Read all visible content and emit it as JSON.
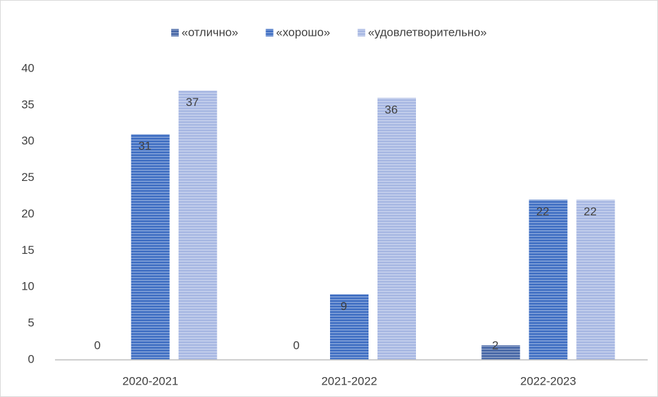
{
  "chart_data": {
    "type": "bar",
    "categories": [
      "2020-2021",
      "2021-2022",
      "2022-2023"
    ],
    "series": [
      {
        "name": "«отлично»",
        "color": "#4a6aa8",
        "values": [
          0,
          0,
          2
        ]
      },
      {
        "name": "«хорошо»",
        "color": "#4472c4",
        "values": [
          31,
          9,
          22
        ]
      },
      {
        "name": "«удовлетворительно»",
        "color": "#a9b9e3",
        "values": [
          37,
          36,
          22
        ]
      }
    ],
    "ylim": [
      0,
      40
    ],
    "yticks": [
      0,
      5,
      10,
      15,
      20,
      25,
      30,
      35,
      40
    ],
    "grid": false,
    "legend": "top"
  }
}
